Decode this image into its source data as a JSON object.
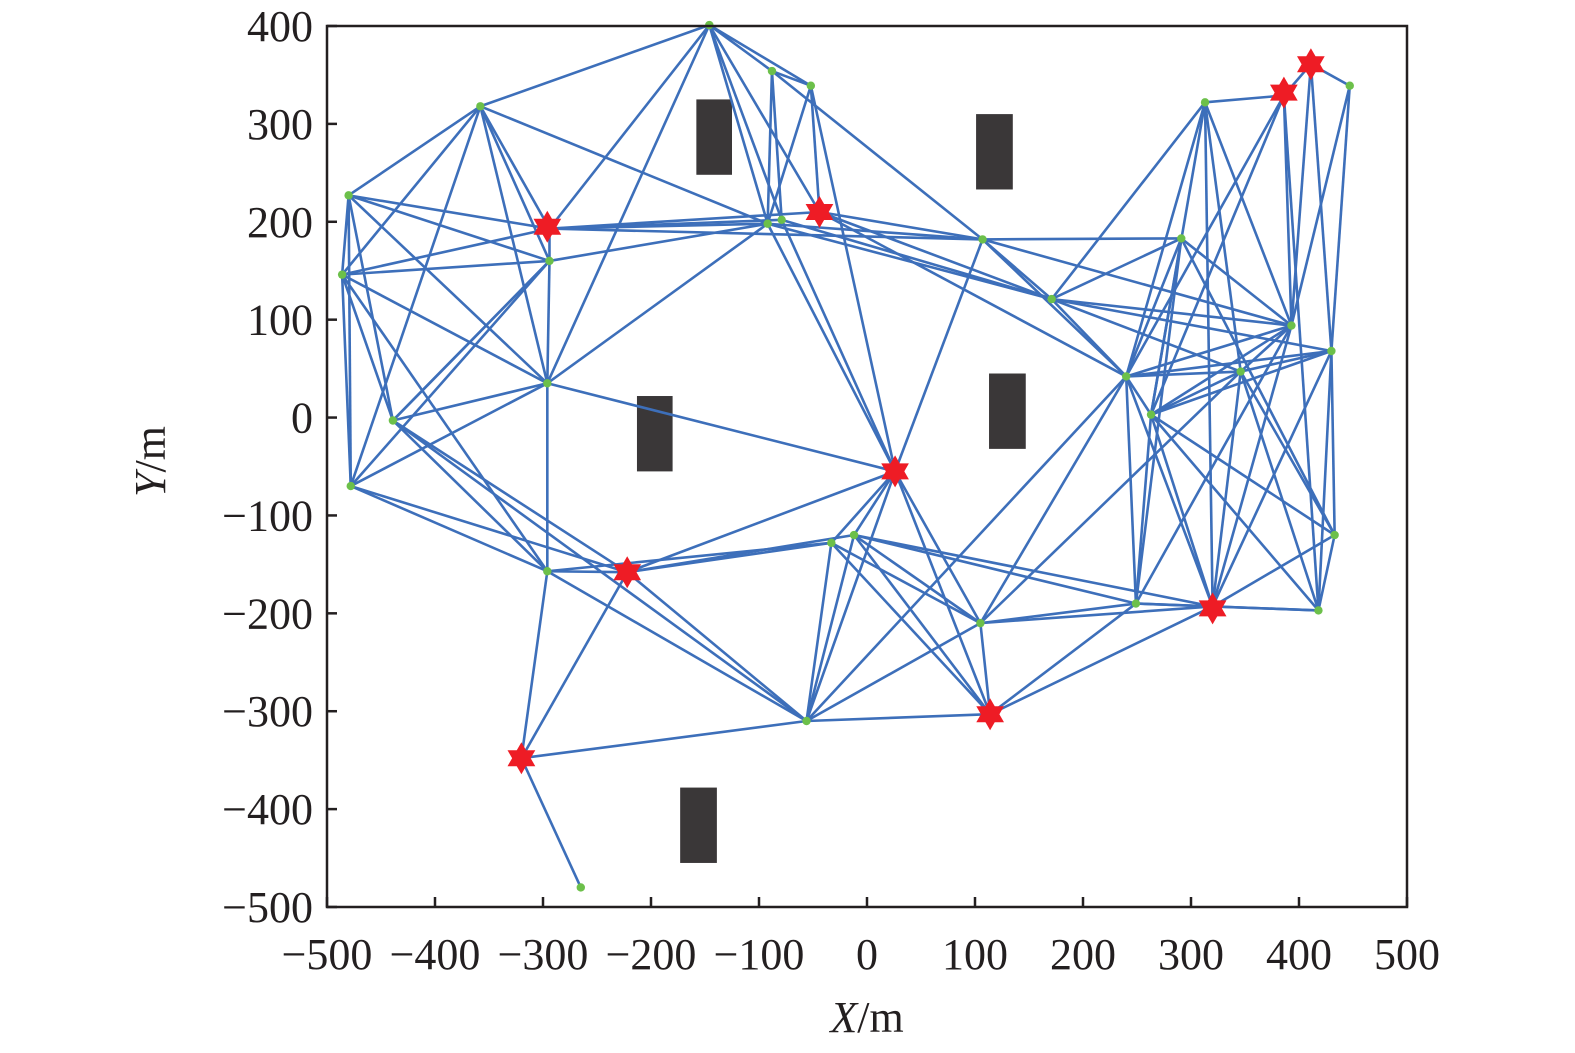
{
  "chart_data": {
    "type": "scatter",
    "title": "",
    "xlabel": {
      "var": "X",
      "unit": "/m"
    },
    "ylabel": {
      "var": "Y",
      "unit": "/m"
    },
    "xlim": [
      -500,
      500
    ],
    "ylim": [
      -500,
      400
    ],
    "xticks": [
      -500,
      -400,
      -300,
      -200,
      -100,
      0,
      100,
      200,
      300,
      400,
      500
    ],
    "yticks": [
      -500,
      -400,
      -300,
      -200,
      -100,
      0,
      100,
      200,
      300,
      400
    ],
    "grid": false,
    "colors": {
      "edge": "#3d6fba",
      "node": "#6cc04a",
      "star": "#ee1c25",
      "obstacle": "#3a3738",
      "axis": "#231f20"
    },
    "obstacles": [
      {
        "x": [
          -158,
          -125
        ],
        "y": [
          248,
          325
        ]
      },
      {
        "x": [
          101,
          135
        ],
        "y": [
          233,
          310
        ]
      },
      {
        "x": [
          -213,
          -180
        ],
        "y": [
          -55,
          22
        ]
      },
      {
        "x": [
          113,
          147
        ],
        "y": [
          -32,
          45
        ]
      },
      {
        "x": [
          -173,
          -139
        ],
        "y": [
          -455,
          -378
        ]
      }
    ],
    "nodes": [
      [
        -146,
        401
      ],
      [
        -88,
        354
      ],
      [
        -52,
        339
      ],
      [
        -358,
        318
      ],
      [
        -480,
        227
      ],
      [
        -486,
        146
      ],
      [
        -294,
        193
      ],
      [
        -294,
        160
      ],
      [
        -92,
        198
      ],
      [
        -79,
        202
      ],
      [
        -44,
        210
      ],
      [
        -296,
        35
      ],
      [
        -439,
        -3
      ],
      [
        -478,
        -70
      ],
      [
        -296,
        -157
      ],
      [
        -222,
        -158
      ],
      [
        -33,
        -128
      ],
      [
        -12,
        -120
      ],
      [
        26,
        -55
      ],
      [
        -56,
        -310
      ],
      [
        105,
        -210
      ],
      [
        114,
        -303
      ],
      [
        -320,
        -348
      ],
      [
        -265,
        -480
      ],
      [
        107,
        182
      ],
      [
        171,
        121
      ],
      [
        291,
        183
      ],
      [
        313,
        322
      ],
      [
        240,
        42
      ],
      [
        263,
        3
      ],
      [
        346,
        47
      ],
      [
        393,
        94
      ],
      [
        430,
        68
      ],
      [
        386,
        329
      ],
      [
        411,
        361
      ],
      [
        447,
        339
      ],
      [
        433,
        -120
      ],
      [
        418,
        -197
      ],
      [
        249,
        -190
      ],
      [
        320,
        -193
      ]
    ],
    "sink_nodes": [
      [
        -296,
        195
      ],
      [
        -44,
        210
      ],
      [
        26,
        -55
      ],
      [
        -222,
        -158
      ],
      [
        -320,
        -348
      ],
      [
        114,
        -303
      ],
      [
        320,
        -195
      ],
      [
        386,
        332
      ],
      [
        411,
        361
      ]
    ],
    "edges": [
      [
        0,
        1
      ],
      [
        0,
        2
      ],
      [
        0,
        3
      ],
      [
        0,
        8
      ],
      [
        0,
        9
      ],
      [
        0,
        10
      ],
      [
        0,
        11
      ],
      [
        0,
        6
      ],
      [
        1,
        2
      ],
      [
        1,
        8
      ],
      [
        1,
        9
      ],
      [
        1,
        24
      ],
      [
        2,
        8
      ],
      [
        2,
        10
      ],
      [
        2,
        18
      ],
      [
        3,
        4
      ],
      [
        3,
        5
      ],
      [
        3,
        6
      ],
      [
        3,
        7
      ],
      [
        3,
        8
      ],
      [
        3,
        11
      ],
      [
        3,
        13
      ],
      [
        4,
        5
      ],
      [
        4,
        6
      ],
      [
        4,
        12
      ],
      [
        4,
        13
      ],
      [
        4,
        11
      ],
      [
        4,
        7
      ],
      [
        5,
        6
      ],
      [
        5,
        7
      ],
      [
        5,
        11
      ],
      [
        5,
        13
      ],
      [
        5,
        14
      ],
      [
        5,
        12
      ],
      [
        6,
        8
      ],
      [
        6,
        10
      ],
      [
        6,
        9
      ],
      [
        6,
        24
      ],
      [
        6,
        7
      ],
      [
        7,
        11
      ],
      [
        7,
        12
      ],
      [
        7,
        13
      ],
      [
        7,
        8
      ],
      [
        11,
        12
      ],
      [
        11,
        13
      ],
      [
        11,
        14
      ],
      [
        11,
        8
      ],
      [
        11,
        18
      ],
      [
        12,
        14
      ],
      [
        12,
        15
      ],
      [
        12,
        19
      ],
      [
        12,
        7
      ],
      [
        13,
        15
      ],
      [
        13,
        14
      ],
      [
        14,
        15
      ],
      [
        14,
        16
      ],
      [
        14,
        22
      ],
      [
        15,
        16
      ],
      [
        15,
        17
      ],
      [
        15,
        18
      ],
      [
        15,
        22
      ],
      [
        15,
        19
      ],
      [
        8,
        18
      ],
      [
        9,
        18
      ],
      [
        10,
        24
      ],
      [
        10,
        25
      ],
      [
        8,
        24
      ],
      [
        8,
        25
      ],
      [
        9,
        25
      ],
      [
        10,
        28
      ],
      [
        24,
        18
      ],
      [
        24,
        25
      ],
      [
        24,
        26
      ],
      [
        24,
        28
      ],
      [
        24,
        31
      ],
      [
        25,
        28
      ],
      [
        25,
        31
      ],
      [
        25,
        30
      ],
      [
        25,
        32
      ],
      [
        25,
        26
      ],
      [
        26,
        28
      ],
      [
        26,
        29
      ],
      [
        26,
        31
      ],
      [
        26,
        38
      ],
      [
        26,
        36
      ],
      [
        27,
        28
      ],
      [
        27,
        29
      ],
      [
        27,
        30
      ],
      [
        27,
        31
      ],
      [
        27,
        33
      ],
      [
        27,
        39
      ],
      [
        27,
        25
      ],
      [
        33,
        34
      ],
      [
        33,
        31
      ],
      [
        33,
        29
      ],
      [
        33,
        37
      ],
      [
        33,
        28
      ],
      [
        34,
        35
      ],
      [
        34,
        31
      ],
      [
        34,
        32
      ],
      [
        35,
        32
      ],
      [
        35,
        31
      ],
      [
        31,
        28
      ],
      [
        31,
        29
      ],
      [
        31,
        30
      ],
      [
        31,
        39
      ],
      [
        31,
        38
      ],
      [
        32,
        28
      ],
      [
        32,
        29
      ],
      [
        32,
        30
      ],
      [
        32,
        36
      ],
      [
        32,
        37
      ],
      [
        32,
        39
      ],
      [
        30,
        28
      ],
      [
        30,
        29
      ],
      [
        30,
        36
      ],
      [
        30,
        37
      ],
      [
        30,
        39
      ],
      [
        30,
        20
      ],
      [
        29,
        28
      ],
      [
        29,
        38
      ],
      [
        29,
        39
      ],
      [
        29,
        36
      ],
      [
        29,
        37
      ],
      [
        28,
        38
      ],
      [
        28,
        39
      ],
      [
        28,
        20
      ],
      [
        28,
        19
      ],
      [
        18,
        16
      ],
      [
        18,
        17
      ],
      [
        18,
        19
      ],
      [
        18,
        20
      ],
      [
        18,
        21
      ],
      [
        16,
        19
      ],
      [
        16,
        20
      ],
      [
        16,
        21
      ],
      [
        17,
        19
      ],
      [
        17,
        20
      ],
      [
        17,
        21
      ],
      [
        17,
        38
      ],
      [
        17,
        39
      ],
      [
        19,
        20
      ],
      [
        19,
        21
      ],
      [
        19,
        22
      ],
      [
        19,
        14
      ],
      [
        20,
        21
      ],
      [
        20,
        38
      ],
      [
        20,
        39
      ],
      [
        21,
        38
      ],
      [
        21,
        39
      ],
      [
        38,
        39
      ],
      [
        38,
        37
      ],
      [
        39,
        37
      ],
      [
        39,
        36
      ],
      [
        36,
        37
      ],
      [
        22,
        23
      ]
    ]
  }
}
